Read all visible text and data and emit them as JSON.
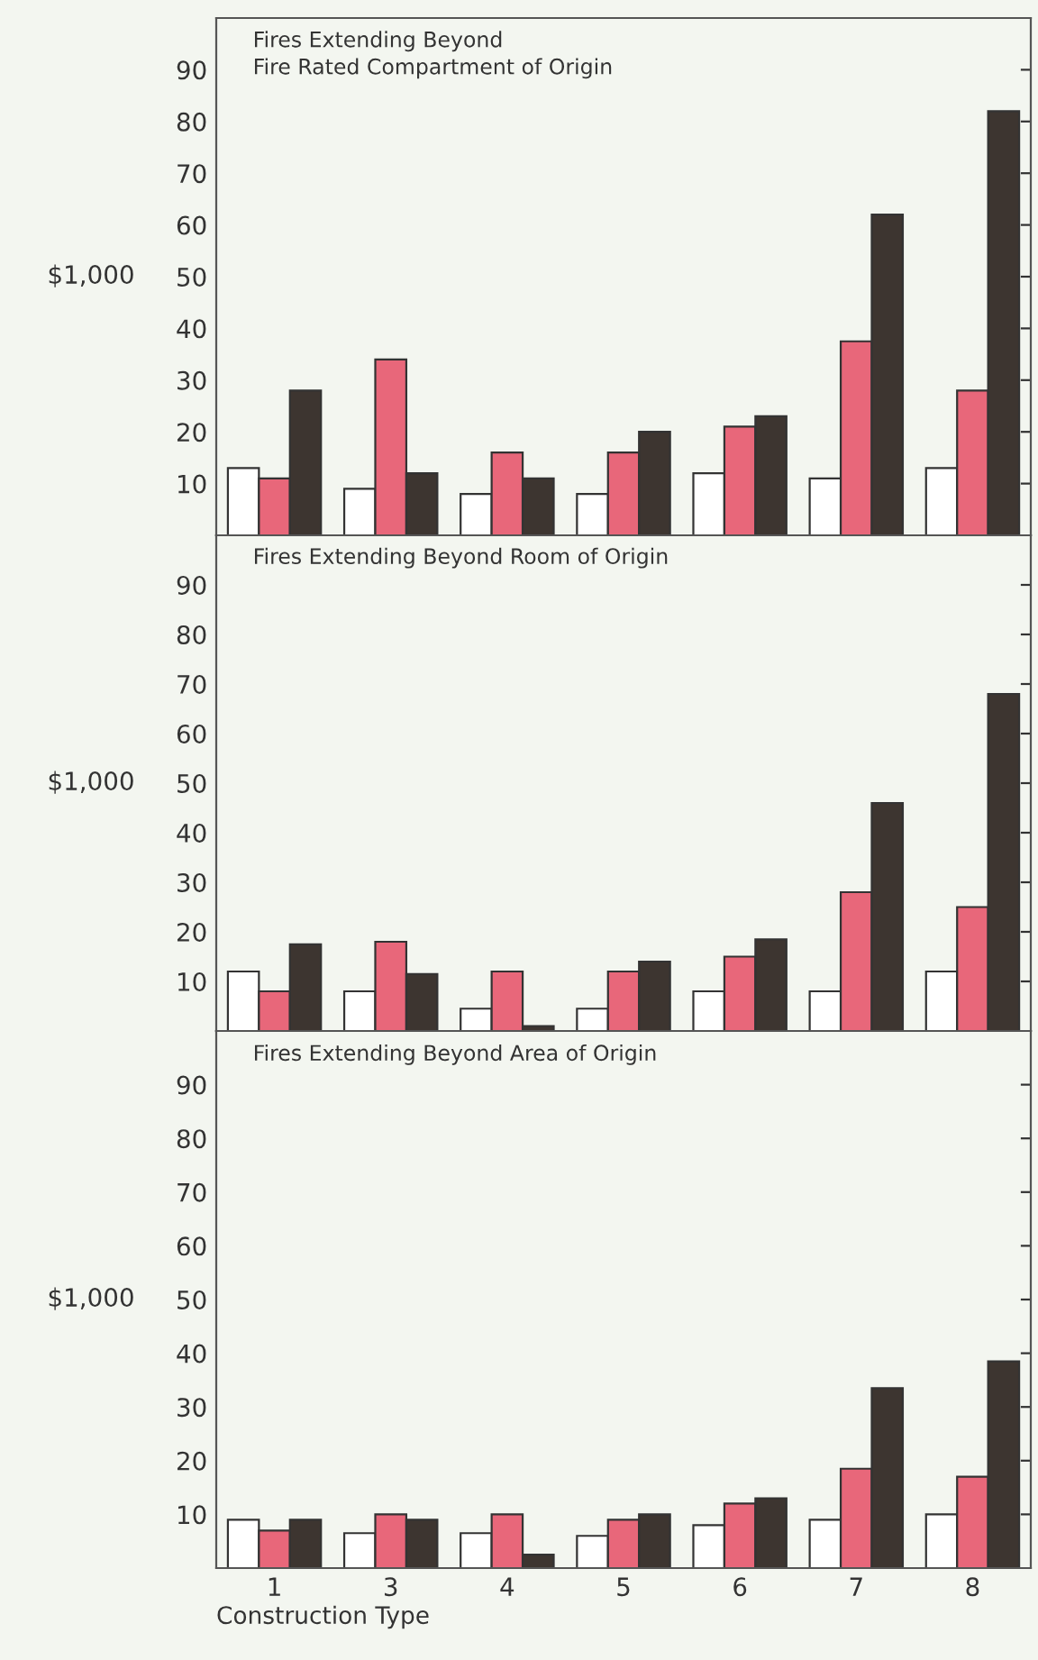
{
  "chart_data": [
    {
      "type": "bar",
      "title": "Fires Extending Beyond\nFire Rated Compartment of Origin",
      "ylabel": "$1,000",
      "categories": [
        "1",
        "3",
        "4",
        "5",
        "6",
        "7",
        "8"
      ],
      "ylim": [
        0,
        100
      ],
      "yticks": [
        10,
        20,
        30,
        40,
        50,
        60,
        70,
        80,
        90
      ],
      "tick_labels": "y",
      "series": [
        {
          "color": "#ffffff",
          "values": [
            13,
            9,
            8,
            8,
            12,
            11,
            13
          ]
        },
        {
          "color": "#e8677a",
          "values": [
            11,
            34,
            16,
            16,
            21,
            37.5,
            28
          ]
        },
        {
          "color": "#3d3530",
          "values": [
            28,
            12,
            11,
            20,
            23,
            62,
            82
          ]
        }
      ]
    },
    {
      "type": "bar",
      "title": "Fires Extending Beyond Room of Origin",
      "ylabel": "$1,000",
      "categories": [
        "1",
        "3",
        "4",
        "5",
        "6",
        "7",
        "8"
      ],
      "ylim": [
        0,
        100
      ],
      "yticks": [
        10,
        20,
        30,
        40,
        50,
        60,
        70,
        80,
        90
      ],
      "tick_labels": "y",
      "series": [
        {
          "color": "#ffffff",
          "values": [
            12,
            8,
            4.5,
            4.5,
            8,
            8,
            12
          ]
        },
        {
          "color": "#e8677a",
          "values": [
            8,
            18,
            12,
            12,
            15,
            28,
            25
          ]
        },
        {
          "color": "#3d3530",
          "values": [
            17.5,
            11.5,
            1,
            14,
            18.5,
            46,
            68
          ]
        }
      ]
    },
    {
      "type": "bar",
      "title": "Fires Extending Beyond Area of Origin",
      "ylabel": "$1,000",
      "xlabel": "Construction Type",
      "categories": [
        "1",
        "3",
        "4",
        "5",
        "6",
        "7",
        "8"
      ],
      "ylim": [
        0,
        100
      ],
      "yticks": [
        10,
        20,
        30,
        40,
        50,
        60,
        70,
        80,
        90
      ],
      "series": [
        {
          "color": "#ffffff",
          "values": [
            9,
            6.5,
            6.5,
            6,
            8,
            9,
            10
          ]
        },
        {
          "color": "#e8677a",
          "values": [
            7,
            10,
            10,
            9,
            12,
            18.5,
            17
          ]
        },
        {
          "color": "#3d3530",
          "values": [
            9,
            9,
            2.5,
            10,
            13,
            33.5,
            38.5
          ]
        }
      ]
    }
  ]
}
